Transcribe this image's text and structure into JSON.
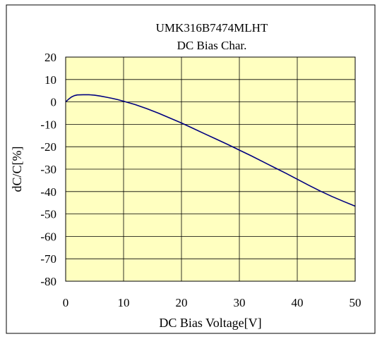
{
  "chart_data": {
    "type": "line",
    "title": "UMK316B7474MLHT",
    "subtitle": "DC Bias Char.",
    "xlabel": "DC Bias Voltage[V]",
    "ylabel": "dC/C[%]",
    "xlim": [
      0,
      50
    ],
    "ylim": [
      -80,
      20
    ],
    "xticks": [
      0,
      10,
      20,
      30,
      40,
      50
    ],
    "yticks": [
      20,
      10,
      0,
      -10,
      -20,
      -30,
      -40,
      -50,
      -60,
      -70,
      -80
    ],
    "grid": true,
    "plot_background": "#ffffc0",
    "line_color": "#000080",
    "series": [
      {
        "x": [
          0,
          0.5,
          1,
          1.5,
          2,
          3,
          4,
          5,
          6,
          7,
          8,
          9,
          10,
          12,
          14,
          16,
          18,
          20,
          22,
          24,
          26,
          28,
          30,
          32,
          34,
          36,
          38,
          40,
          42,
          44,
          46,
          48,
          50
        ],
        "y": [
          0,
          1.2,
          2.2,
          2.8,
          3.1,
          3.2,
          3.2,
          3.0,
          2.6,
          2.1,
          1.6,
          1.0,
          0.3,
          -1.2,
          -3.0,
          -5.0,
          -7.2,
          -9.4,
          -11.8,
          -14.2,
          -16.6,
          -19.0,
          -21.5,
          -24.0,
          -26.6,
          -29.2,
          -31.8,
          -34.5,
          -37.2,
          -39.8,
          -42.2,
          -44.4,
          -46.5
        ]
      }
    ]
  }
}
